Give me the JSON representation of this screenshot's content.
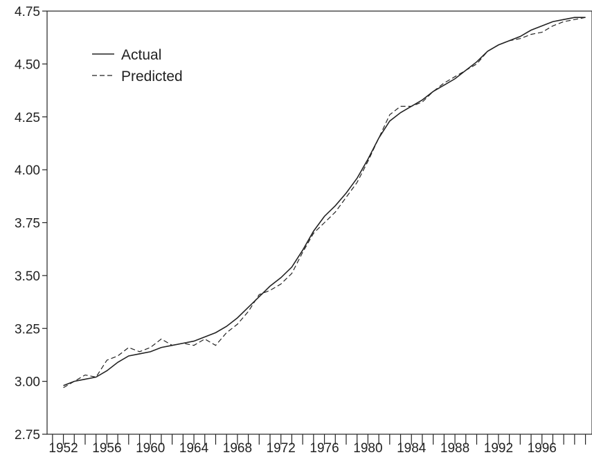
{
  "chart_data": {
    "type": "line",
    "title": "",
    "xlabel": "",
    "ylabel": "",
    "xlim": [
      1950.5,
      2000.6
    ],
    "ylim": [
      2.75,
      4.75
    ],
    "grid": false,
    "legend_placement": "top-left",
    "x_tick_labels": [
      "1952",
      "1956",
      "1960",
      "1964",
      "1968",
      "1972",
      "1976",
      "1980",
      "1984",
      "1988",
      "1992",
      "1996"
    ],
    "y_tick_labels": [
      "2.75",
      "3.00",
      "3.25",
      "3.50",
      "3.75",
      "4.00",
      "4.25",
      "4.50",
      "4.75"
    ],
    "x": [
      1952,
      1953,
      1954,
      1955,
      1956,
      1957,
      1958,
      1959,
      1960,
      1961,
      1962,
      1963,
      1964,
      1965,
      1966,
      1967,
      1968,
      1969,
      1970,
      1971,
      1972,
      1973,
      1974,
      1975,
      1976,
      1977,
      1978,
      1979,
      1980,
      1981,
      1982,
      1983,
      1984,
      1985,
      1986,
      1987,
      1988,
      1989,
      1990,
      1991,
      1992,
      1993,
      1994,
      1995,
      1996,
      1997,
      1998,
      1999,
      2000
    ],
    "series": [
      {
        "name": "Actual",
        "style": "solid",
        "color": "#222222",
        "values": [
          2.98,
          3.0,
          3.01,
          3.02,
          3.05,
          3.09,
          3.12,
          3.13,
          3.14,
          3.16,
          3.17,
          3.18,
          3.19,
          3.21,
          3.23,
          3.26,
          3.3,
          3.35,
          3.4,
          3.45,
          3.49,
          3.54,
          3.62,
          3.71,
          3.78,
          3.83,
          3.89,
          3.96,
          4.05,
          4.15,
          4.23,
          4.27,
          4.3,
          4.33,
          4.37,
          4.4,
          4.43,
          4.47,
          4.51,
          4.56,
          4.59,
          4.61,
          4.63,
          4.66,
          4.68,
          4.7,
          4.71,
          4.72,
          4.72
        ]
      },
      {
        "name": "Predicted",
        "style": "dashed",
        "color": "#222222",
        "values": [
          2.97,
          3.0,
          3.03,
          3.02,
          3.1,
          3.12,
          3.16,
          3.14,
          3.16,
          3.2,
          3.17,
          3.18,
          3.17,
          3.2,
          3.17,
          3.23,
          3.27,
          3.33,
          3.41,
          3.43,
          3.46,
          3.51,
          3.61,
          3.7,
          3.75,
          3.8,
          3.87,
          3.94,
          4.04,
          4.15,
          4.26,
          4.3,
          4.3,
          4.32,
          4.37,
          4.41,
          4.44,
          4.47,
          4.5,
          4.56,
          4.59,
          4.61,
          4.62,
          4.64,
          4.65,
          4.68,
          4.7,
          4.71,
          4.72
        ]
      }
    ]
  }
}
